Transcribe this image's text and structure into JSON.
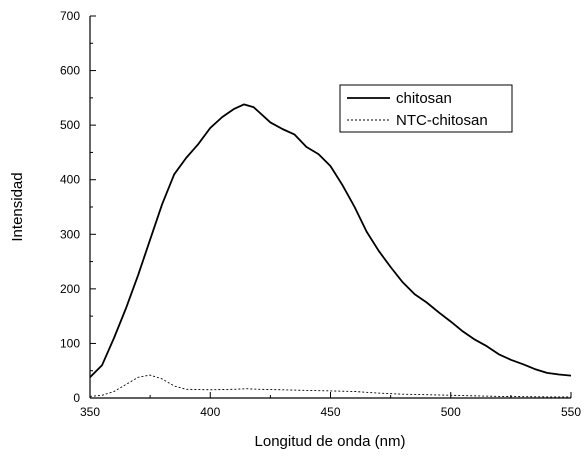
{
  "chart_data": {
    "type": "line",
    "xlabel": "Longitud de onda (nm)",
    "ylabel": "Intensidad",
    "xlim": [
      350,
      550
    ],
    "ylim": [
      0,
      700
    ],
    "x_ticks": [
      350,
      400,
      450,
      500,
      550
    ],
    "y_ticks": [
      0,
      100,
      200,
      300,
      400,
      500,
      600,
      700
    ],
    "grid": false,
    "legend_position": "top-right",
    "series": [
      {
        "name": "chitosan",
        "style": "solid",
        "color": "#000000",
        "x": [
          350,
          355,
          360,
          365,
          370,
          375,
          380,
          385,
          390,
          395,
          400,
          405,
          410,
          414,
          418,
          420,
          425,
          430,
          435,
          440,
          445,
          450,
          455,
          460,
          465,
          470,
          475,
          480,
          485,
          490,
          495,
          500,
          505,
          510,
          515,
          520,
          525,
          530,
          535,
          540,
          545,
          550
        ],
        "values": [
          38,
          60,
          110,
          165,
          225,
          290,
          355,
          410,
          440,
          465,
          495,
          515,
          530,
          538,
          533,
          525,
          505,
          493,
          483,
          460,
          447,
          425,
          390,
          350,
          305,
          270,
          240,
          212,
          190,
          175,
          157,
          140,
          122,
          107,
          95,
          80,
          70,
          62,
          53,
          46,
          43,
          41
        ]
      },
      {
        "name": "NTC-chitosan",
        "style": "dashed",
        "color": "#000000",
        "x": [
          350,
          355,
          360,
          365,
          370,
          375,
          380,
          385,
          390,
          400,
          410,
          415,
          420,
          430,
          440,
          450,
          460,
          470,
          480,
          490,
          500,
          520,
          540,
          550
        ],
        "values": [
          3,
          5,
          12,
          25,
          38,
          42,
          35,
          22,
          16,
          15,
          16,
          17,
          16,
          15,
          14,
          13,
          12,
          9,
          7,
          6,
          5,
          3,
          2,
          2
        ]
      }
    ]
  }
}
